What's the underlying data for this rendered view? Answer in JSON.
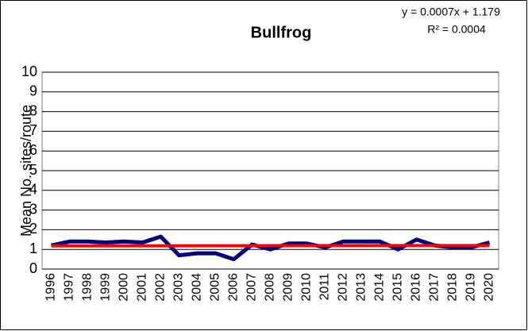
{
  "chart_data": {
    "type": "line",
    "title": "Bullfrog",
    "annotations": [
      "y = 0.0007x + 1.179",
      "R² = 0.0004"
    ],
    "y_label": "Mean No. sites/route",
    "categories": [
      "1996",
      "1997",
      "1998",
      "1999",
      "2000",
      "2001",
      "2002",
      "2003",
      "2004",
      "2005",
      "2006",
      "2007",
      "2008",
      "2009",
      "2010",
      "2011",
      "2012",
      "2013",
      "2014",
      "2015",
      "2016",
      "2017",
      "2018",
      "2019",
      "2020"
    ],
    "series": [
      {
        "name": "Bullfrog",
        "color": "#000080",
        "values": [
          1.2,
          1.4,
          1.4,
          1.35,
          1.4,
          1.35,
          1.65,
          0.7,
          0.8,
          0.8,
          0.5,
          1.25,
          1.0,
          1.3,
          1.3,
          1.1,
          1.4,
          1.4,
          1.4,
          1.0,
          1.5,
          1.2,
          1.1,
          1.1,
          1.35
        ]
      }
    ],
    "trendline": {
      "color": "#ff0000",
      "slope": 0.0007,
      "intercept": 1.179
    },
    "ylim": [
      0,
      10
    ],
    "yticks": [
      0,
      1,
      2,
      3,
      4,
      5,
      6,
      7,
      8,
      9,
      10
    ],
    "grid": true
  }
}
